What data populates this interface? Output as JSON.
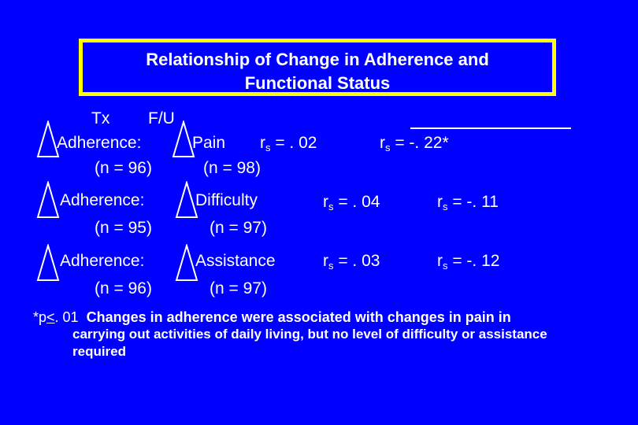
{
  "title": {
    "line1": "Relationship of Change in Adherence and",
    "line2": "Functional Status"
  },
  "header": {
    "tx": "Tx",
    "fu": "F/U"
  },
  "rows": [
    {
      "left_label": "Adherence:",
      "left_n": "(n = 96)",
      "right_label": "Pain",
      "right_n": "(n = 98)",
      "r1_prefix": "r",
      "r1_sub": "s",
      "r1_value": " = . 02",
      "r2_prefix": "r",
      "r2_sub": "s",
      "r2_value": " = -. 22*"
    },
    {
      "left_label": "Adherence:",
      "left_n": "(n = 95)",
      "right_label": "Difficulty",
      "right_n": "(n = 97)",
      "r1_prefix": "r",
      "r1_sub": "s",
      "r1_value": " = . 04",
      "r2_prefix": "r",
      "r2_sub": "s",
      "r2_value": " = -. 11"
    },
    {
      "left_label": "Adherence:",
      "left_n": "(n = 96)",
      "right_label": "Assistance",
      "right_n": "(n = 97)",
      "r1_prefix": "r",
      "r1_sub": "s",
      "r1_value": " = . 03",
      "r2_prefix": "r",
      "r2_sub": "s",
      "r2_value": " = -. 12"
    }
  ],
  "footnote": {
    "marker_a": "*p",
    "marker_le": "<",
    "marker_b": ". 01",
    "text_first": "Changes in adherence were associated with changes in pain in",
    "text_rest": "carrying out activities of daily living, but no level of difficulty or assistance required"
  },
  "colors": {
    "background": "#0000ff",
    "title_border": "#ffff00",
    "text": "#ffffff"
  },
  "icons": {
    "delta": "delta-icon"
  }
}
